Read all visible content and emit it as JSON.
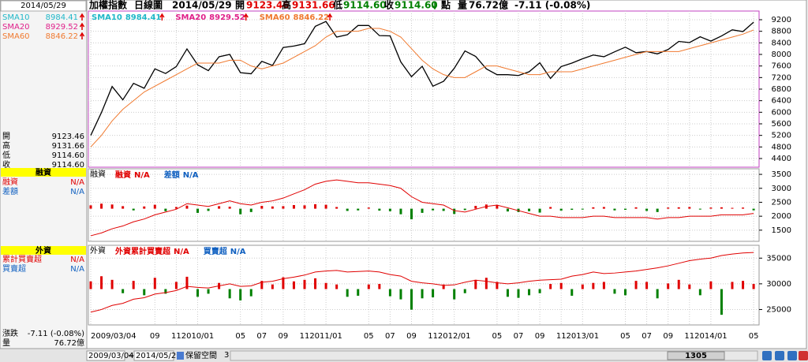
{
  "header": {
    "name": "加權指數",
    "mode": "日線圖",
    "date": "2014/05/29",
    "open_label": "開",
    "open": "9123.46",
    "high_label": "高",
    "high": "9131.66",
    "low_label": "低",
    "low": "9114.60",
    "close_label": "收",
    "close": "9114.60",
    "unit": "點",
    "volume_label": "量",
    "volume": "76.72",
    "volume_unit": "億",
    "change": "-7.11 (-0.08%)"
  },
  "sidebar": {
    "date": "2014/05/29",
    "ma": [
      {
        "name": "SMA10",
        "value": "8984.41",
        "color": "#20b8c8"
      },
      {
        "name": "SMA20",
        "value": "8929.52",
        "color": "#e0208a"
      },
      {
        "name": "SMA60",
        "value": "8846.22",
        "color": "#f07a30"
      }
    ],
    "quote": [
      {
        "label": "開",
        "value": "9123.46"
      },
      {
        "label": "高",
        "value": "9131.66"
      },
      {
        "label": "低",
        "value": "9114.60"
      },
      {
        "label": "收",
        "value": "9114.60"
      }
    ],
    "margin_title": "融資",
    "margin_rows": [
      {
        "label": "融資",
        "value": "N/A",
        "color": "#e00000"
      },
      {
        "label": "差額",
        "value": "N/A",
        "color": "#1060c0"
      }
    ],
    "foreign_title": "外資",
    "foreign_rows": [
      {
        "label": "累計買賣超",
        "value": "N/A",
        "color": "#e00000"
      },
      {
        "label": "買賣超",
        "value": "N/A",
        "color": "#1060c0"
      }
    ],
    "summary": [
      {
        "label": "漲跌",
        "value": "-7.11 (-0.08%)"
      },
      {
        "label": "量",
        "value": "76.72億"
      }
    ]
  },
  "chart_data": [
    {
      "type": "line",
      "legend": [
        {
          "name": "SMA10",
          "value": "8984.41",
          "color": "#20b8c8"
        },
        {
          "name": "SMA20",
          "value": "8929.52",
          "color": "#e0208a"
        },
        {
          "name": "SMA60",
          "value": "8846.22",
          "color": "#f07a30"
        }
      ],
      "ylim": [
        4100,
        9500
      ],
      "yticks": [
        4400,
        4800,
        5200,
        5600,
        6000,
        6400,
        6800,
        7200,
        7600,
        8000,
        8400,
        8800,
        9200
      ],
      "grid": true,
      "series": [
        {
          "color": "#000000",
          "values": [
            5200,
            5990,
            6890,
            6430,
            7000,
            6830,
            7500,
            7340,
            7580,
            8190,
            7640,
            7440,
            7920,
            8000,
            7370,
            7330,
            7760,
            7620,
            8240,
            8290,
            8370,
            8970,
            9140,
            8600,
            8680,
            9000,
            9000,
            8650,
            8640,
            7740,
            7230,
            7590,
            6900,
            7070,
            7520,
            8120,
            7930,
            7500,
            7300,
            7300,
            7270,
            7400,
            7710,
            7170,
            7580,
            7700,
            7850,
            7980,
            7920,
            8090,
            8250,
            8060,
            8100,
            8020,
            8170,
            8450,
            8410,
            8610,
            8460,
            8640,
            8850,
            8790,
            9114.6
          ]
        },
        {
          "name": "SMA60",
          "color": "#f07a30",
          "values": [
            4800,
            5200,
            5700,
            6100,
            6400,
            6700,
            6900,
            7100,
            7300,
            7500,
            7700,
            7700,
            7700,
            7800,
            7800,
            7600,
            7500,
            7600,
            7700,
            7900,
            8100,
            8300,
            8600,
            8800,
            8800,
            8800,
            8900,
            8900,
            8800,
            8600,
            8200,
            7800,
            7500,
            7300,
            7200,
            7200,
            7400,
            7600,
            7600,
            7500,
            7400,
            7300,
            7300,
            7400,
            7400,
            7400,
            7500,
            7600,
            7700,
            7800,
            7900,
            8000,
            8100,
            8100,
            8100,
            8100,
            8200,
            8300,
            8400,
            8500,
            8600,
            8700,
            8846.22
          ]
        }
      ]
    },
    {
      "type": "bar-line",
      "title": "融資",
      "legend": [
        {
          "name": "融資",
          "value": "N/A",
          "color": "#e00000"
        },
        {
          "name": "差額",
          "value": "N/A",
          "color": "#1060c0"
        }
      ],
      "ylim": [
        1100,
        3700
      ],
      "yticks": [
        1500,
        2000,
        2500,
        3000,
        3500
      ],
      "grid": true,
      "series": [
        {
          "name": "融資",
          "color": "#e00000",
          "values": [
            1300,
            1400,
            1550,
            1650,
            1800,
            1900,
            2050,
            2150,
            2250,
            2450,
            2400,
            2350,
            2450,
            2550,
            2450,
            2400,
            2500,
            2550,
            2650,
            2800,
            2950,
            3150,
            3250,
            3300,
            3250,
            3200,
            3200,
            3150,
            3100,
            3000,
            2700,
            2500,
            2450,
            2400,
            2200,
            2150,
            2250,
            2350,
            2400,
            2300,
            2200,
            2100,
            2000,
            2000,
            1950,
            1950,
            1950,
            2000,
            2000,
            1950,
            1950,
            1950,
            1950,
            1900,
            1950,
            1950,
            2000,
            2000,
            2000,
            2050,
            2050,
            2050,
            2100
          ]
        },
        {
          "name": "差額",
          "color": "#e00000",
          "down_color": "#008000",
          "values": [
            120,
            180,
            150,
            90,
            -60,
            80,
            140,
            -90,
            60,
            110,
            -150,
            -80,
            90,
            70,
            -200,
            -120,
            100,
            80,
            90,
            130,
            120,
            160,
            140,
            60,
            -80,
            -60,
            40,
            -70,
            -90,
            -200,
            -380,
            -150,
            -60,
            -80,
            -190,
            -50,
            100,
            150,
            120,
            -100,
            -120,
            -90,
            -140,
            60,
            -70,
            -40,
            -30,
            50,
            60,
            -60,
            -40,
            50,
            -80,
            -120,
            40,
            50,
            60,
            -30,
            40,
            50,
            30,
            40,
            -60
          ]
        }
      ]
    },
    {
      "type": "bar-line",
      "title": "外資",
      "legend": [
        {
          "name": "外資累計買賣超",
          "value": "N/A",
          "color": "#e00000"
        },
        {
          "name": "買賣超",
          "value": "N/A",
          "color": "#1060c0"
        }
      ],
      "ylim": [
        22000,
        37500
      ],
      "yticks": [
        25000,
        30000,
        35000
      ],
      "grid": true,
      "xtick_labels": [
        "2009/03/04",
        "09",
        "11",
        "2010/01",
        "05",
        "07",
        "09",
        "11",
        "2011/01",
        "05",
        "07",
        "09",
        "11",
        "2012/01",
        "05",
        "07",
        "09",
        "11",
        "2013/01",
        "05",
        "07",
        "09",
        "11",
        "2014/01",
        "05"
      ],
      "series": [
        {
          "name": "外資累計買賣超",
          "color": "#e00000",
          "values": [
            24500,
            25000,
            25800,
            26200,
            27000,
            27300,
            28000,
            28300,
            28700,
            29500,
            29300,
            29200,
            29600,
            30000,
            29500,
            29600,
            30300,
            30500,
            31000,
            31300,
            31700,
            32300,
            32500,
            32600,
            32300,
            32400,
            32500,
            32300,
            31800,
            31500,
            30500,
            30200,
            30000,
            29700,
            29800,
            30300,
            30700,
            30500,
            30200,
            30000,
            30200,
            30500,
            30700,
            30800,
            30900,
            31500,
            31800,
            32300,
            32000,
            32100,
            32300,
            32500,
            32800,
            33100,
            33500,
            34000,
            34500,
            34800,
            35000,
            35500,
            35800,
            36000,
            36100
          ]
        },
        {
          "name": "買賣超",
          "color": "#e00000",
          "down_color": "#008000",
          "values": [
            1500,
            2500,
            1800,
            -800,
            1600,
            -1200,
            2200,
            -900,
            1400,
            2400,
            -1500,
            -900,
            1200,
            -1800,
            -2200,
            -1400,
            1600,
            900,
            2300,
            1500,
            1800,
            2100,
            1200,
            900,
            -1500,
            -1300,
            900,
            1000,
            -1400,
            -2000,
            -4000,
            -1800,
            -1600,
            900,
            -2000,
            -800,
            1800,
            2200,
            1400,
            -1500,
            -1700,
            -1200,
            -800,
            1000,
            1200,
            -1300,
            900,
            1200,
            1400,
            -900,
            -1200,
            1600,
            1400,
            -1800,
            1100,
            1800,
            900,
            -1200,
            1500,
            -5000,
            1400,
            1600,
            1000
          ]
        }
      ]
    }
  ],
  "footer": {
    "from": "2009/03/04",
    "sep": "~",
    "to": "2014/05/29",
    "reserve": "保留空間",
    "reserve_value": "3",
    "scroll": "1305"
  }
}
